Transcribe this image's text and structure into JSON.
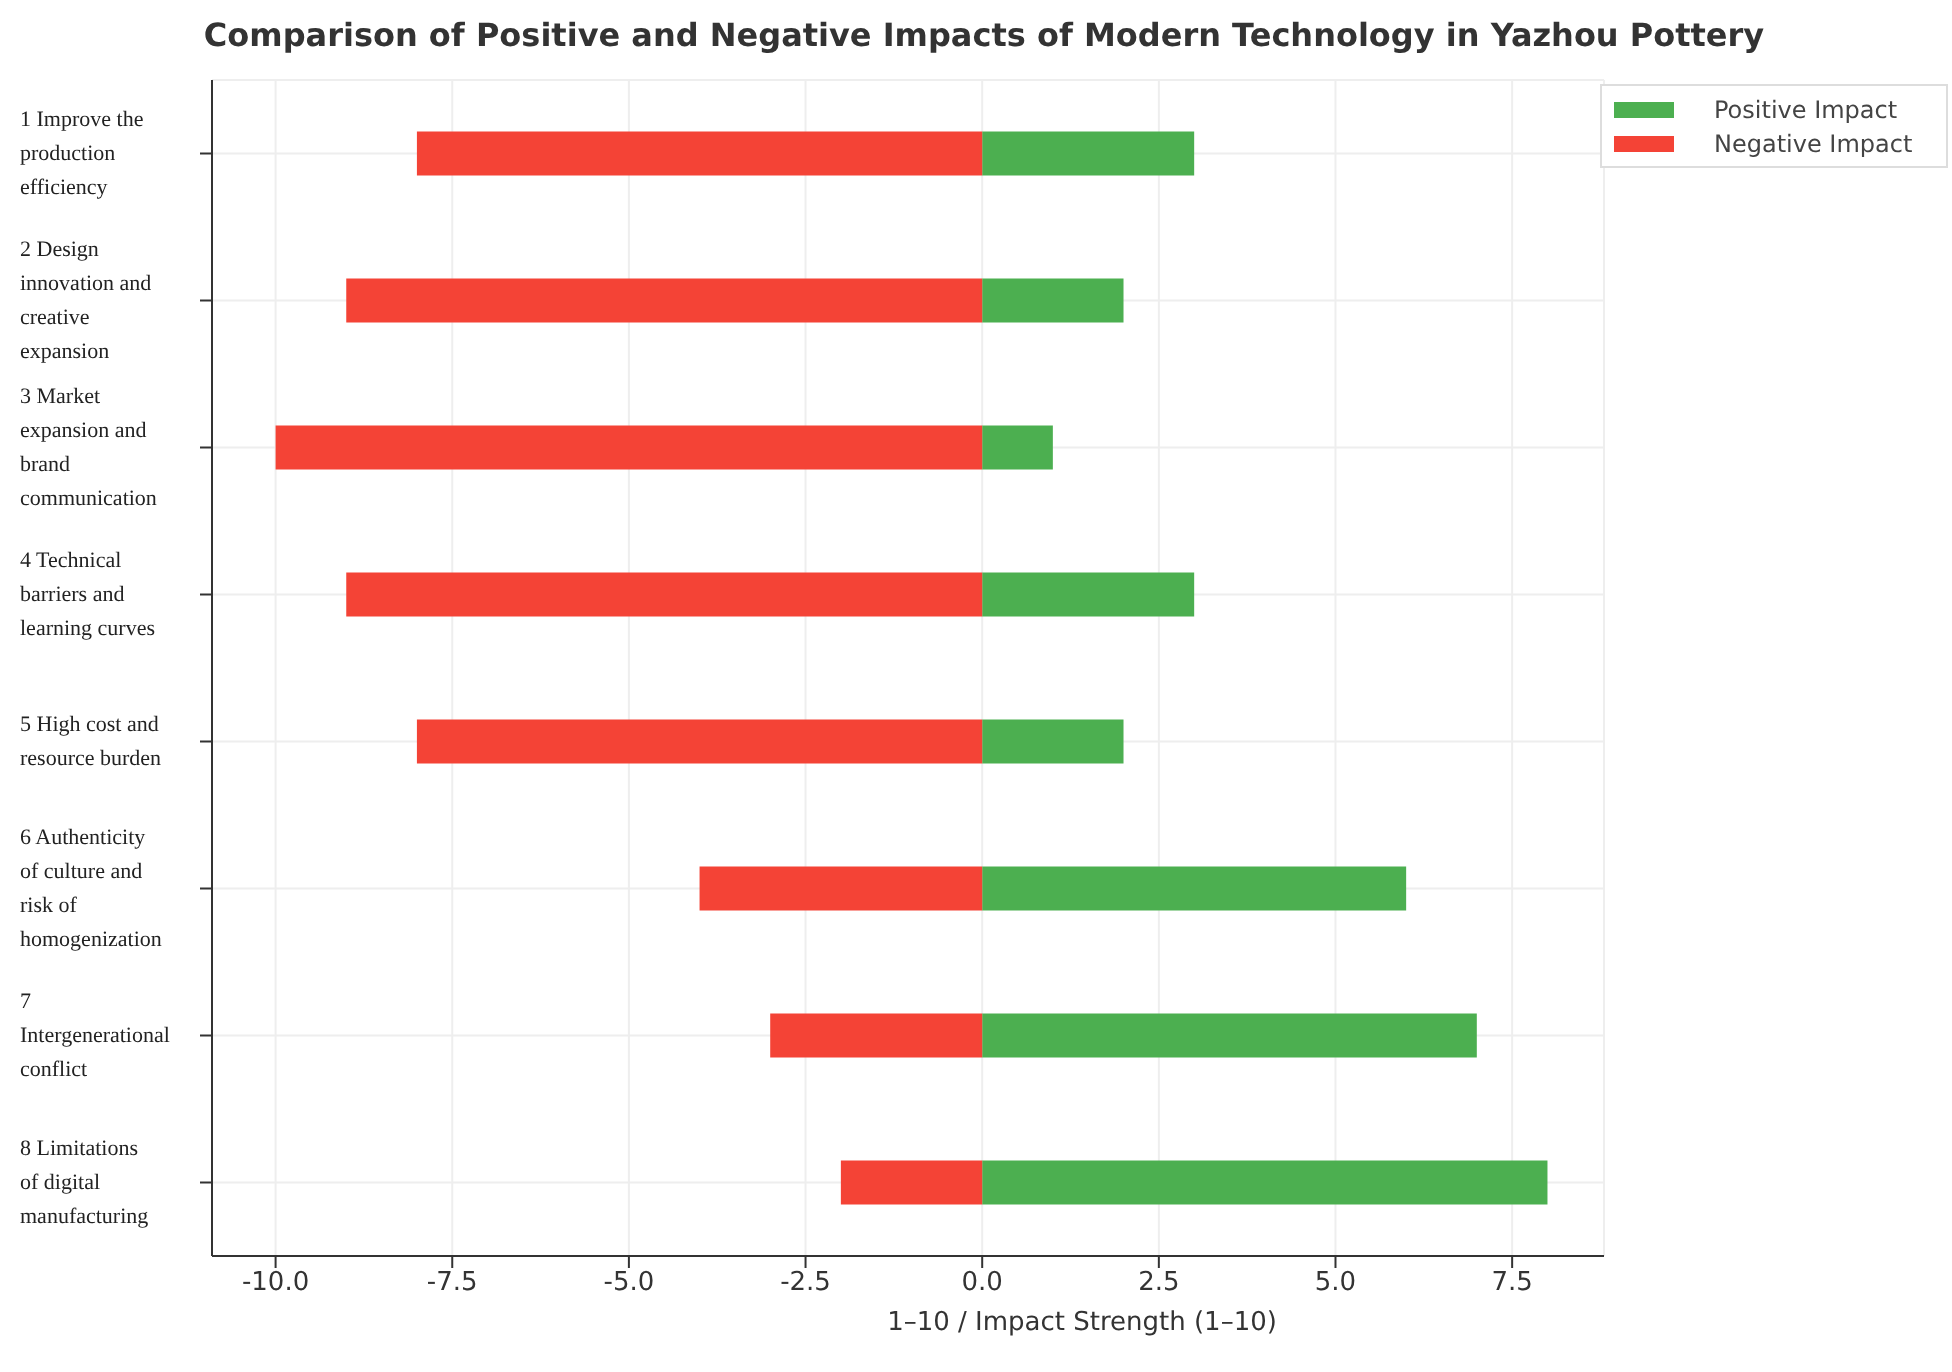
{
  "chart_data": {
    "type": "bar",
    "orientation": "horizontal",
    "stacked": true,
    "title": "Comparison of Positive and Negative Impacts of Modern Technology in Yazhou Pottery",
    "xlabel": "1–10 / Impact Strength (1–10)",
    "categories": [
      "1 Improve the production efficiency",
      "2 Design innovation and creative expansion",
      "3 Market expansion and brand communication",
      "4 Technical barriers and learning curves",
      "5 High cost and resource burden",
      "6 Authenticity of culture and risk of homogenization",
      "7 Intergenerational conflict",
      "8 Limitations of digital manufacturing"
    ],
    "series": [
      {
        "name": "Positive Impact",
        "color": "#4caf50",
        "values": [
          3,
          2,
          1,
          3,
          2,
          6,
          7,
          8
        ]
      },
      {
        "name": "Negative Impact",
        "color": "#f44336",
        "values": [
          -8,
          -9,
          -10,
          -9,
          -8,
          -4,
          -3,
          -2
        ]
      }
    ],
    "xlim": [
      -10.9,
      8.8
    ],
    "xticks": [
      {
        "value": -10,
        "label": "-10.0"
      },
      {
        "value": -7.5,
        "label": "-7.5"
      },
      {
        "value": -5,
        "label": "-5.0"
      },
      {
        "value": -2.5,
        "label": "-2.5"
      },
      {
        "value": 0,
        "label": "0.0"
      },
      {
        "value": 2.5,
        "label": "2.5"
      },
      {
        "value": 5,
        "label": "5.0"
      },
      {
        "value": 7.5,
        "label": "7.5"
      }
    ],
    "grid": true,
    "legend": "top right"
  }
}
